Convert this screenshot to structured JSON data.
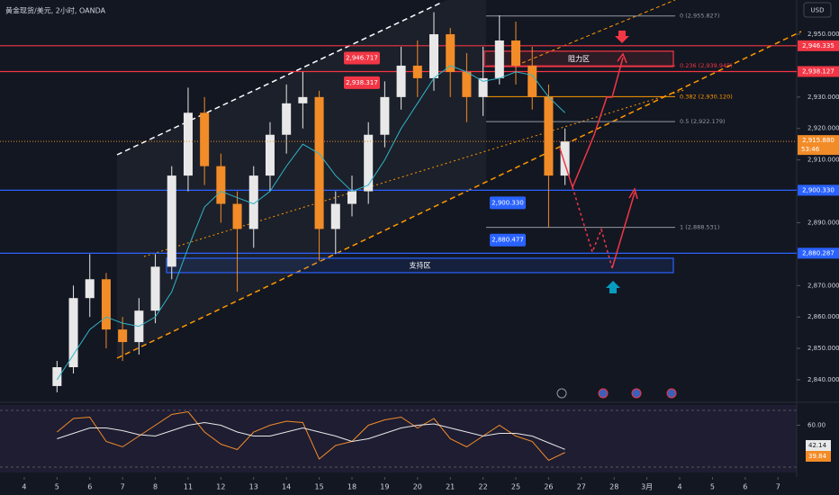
{
  "chart_data": {
    "type": "candlestick",
    "title": "黄金现货/美元, 2小时, OANDA",
    "currency": "USD",
    "x": [
      1,
      1.5,
      2,
      2.5,
      3,
      3.5,
      4,
      4.5,
      5,
      5.5,
      6,
      6.5,
      7,
      7.5,
      8,
      8.5,
      9,
      9.5,
      10,
      10.5,
      11,
      11.5,
      12,
      12.5,
      13,
      13.5,
      14,
      14.5,
      15,
      15.5,
      16,
      16.5
    ],
    "open": [
      2838,
      2844,
      2866,
      2872,
      2856,
      2852,
      2862,
      2876,
      2905,
      2925,
      2908,
      2896,
      2888,
      2905,
      2918,
      2928,
      2930,
      2888,
      2896,
      2900,
      2918,
      2930,
      2940,
      2936,
      2950,
      2938,
      2930,
      2936,
      2948,
      2940,
      2930,
      2905
    ],
    "high": [
      2846,
      2870,
      2880,
      2874,
      2860,
      2866,
      2880,
      2908,
      2933,
      2930,
      2912,
      2900,
      2908,
      2922,
      2934,
      2938,
      2932,
      2900,
      2905,
      2922,
      2935,
      2946,
      2948,
      2957,
      2952,
      2944,
      2946,
      2956,
      2954,
      2946,
      2934,
      2920
    ],
    "low": [
      2836,
      2842,
      2860,
      2850,
      2846,
      2848,
      2858,
      2872,
      2900,
      2902,
      2890,
      2868,
      2882,
      2900,
      2912,
      2920,
      2878,
      2880,
      2892,
      2896,
      2914,
      2926,
      2930,
      2932,
      2930,
      2922,
      2924,
      2934,
      2934,
      2926,
      2888.5,
      2902
    ],
    "close": [
      2844,
      2866,
      2872,
      2856,
      2852,
      2862,
      2876,
      2905,
      2925,
      2908,
      2896,
      2888,
      2905,
      2918,
      2928,
      2930,
      2888,
      2896,
      2900,
      2918,
      2930,
      2940,
      2936,
      2950,
      2938,
      2930,
      2936,
      2948,
      2940,
      2930,
      2905,
      2915.88
    ],
    "colors": {
      "up": "#e8e8e8",
      "down": "#f28c28"
    },
    "ma": {
      "color": "#2fb5c8",
      "values": [
        2840,
        2848,
        2856,
        2860,
        2858,
        2857,
        2860,
        2868,
        2882,
        2895,
        2900,
        2898,
        2896,
        2900,
        2908,
        2915,
        2912,
        2905,
        2900,
        2902,
        2910,
        2920,
        2928,
        2936,
        2940,
        2938,
        2935,
        2936,
        2938,
        2937,
        2930,
        2925
      ]
    },
    "xlim": [
      -0.74,
      23.57
    ],
    "ylim": [
      2833.4,
      2960.9
    ],
    "xticks": [
      {
        "value": 0,
        "label": "4"
      },
      {
        "value": 1,
        "label": "5"
      },
      {
        "value": 2,
        "label": "6"
      },
      {
        "value": 3,
        "label": "7"
      },
      {
        "value": 4,
        "label": "8"
      },
      {
        "value": 5,
        "label": "11"
      },
      {
        "value": 6,
        "label": "12"
      },
      {
        "value": 7,
        "label": "13"
      },
      {
        "value": 8,
        "label": "14"
      },
      {
        "value": 9,
        "label": "15"
      },
      {
        "value": 10,
        "label": "18"
      },
      {
        "value": 11,
        "label": "19"
      },
      {
        "value": 12,
        "label": "20"
      },
      {
        "value": 13,
        "label": "21"
      },
      {
        "value": 14,
        "label": "22"
      },
      {
        "value": 15,
        "label": "25"
      },
      {
        "value": 16,
        "label": "26"
      },
      {
        "value": 17,
        "label": "27"
      },
      {
        "value": 18,
        "label": "28"
      },
      {
        "value": 19,
        "label": "3月"
      },
      {
        "value": 20,
        "label": "4"
      },
      {
        "value": 21,
        "label": "5"
      },
      {
        "value": 22,
        "label": "6"
      },
      {
        "value": 23,
        "label": "7"
      }
    ],
    "yticks": [
      {
        "value": 2950,
        "label": "2,950.000"
      },
      {
        "value": 2930,
        "label": "2,930.000"
      },
      {
        "value": 2920,
        "label": "2,920.000"
      },
      {
        "value": 2910,
        "label": "2,910.000"
      },
      {
        "value": 2890,
        "label": "2,890.000"
      },
      {
        "value": 2870,
        "label": "2,870.000"
      },
      {
        "value": 2860,
        "label": "2,860.000"
      },
      {
        "value": 2850,
        "label": "2,850.000"
      },
      {
        "value": 2840,
        "label": "2,840.000"
      }
    ],
    "levels": [
      {
        "value": 2946.335,
        "label": "2,946.335",
        "color": "#f23645"
      },
      {
        "value": 2938.127,
        "label": "2,938.127",
        "color": "#f23645"
      },
      {
        "value": 2900.33,
        "label": "2,900.330",
        "color": "#2962ff"
      },
      {
        "value": 2880.287,
        "label": "2,880.287",
        "color": "#2962ff"
      }
    ],
    "tags": [
      {
        "value": 2946.717,
        "label": "2,946.717",
        "color": "#f23645"
      },
      {
        "value": 2938.317,
        "label": "2,938.317",
        "color": "#f23645"
      },
      {
        "value": 2900.33,
        "label": "2,900.330",
        "color": "#2962ff"
      },
      {
        "value": 2880.477,
        "label": "2,880.477",
        "color": "#2962ff"
      }
    ],
    "fib": [
      {
        "value": 2955.827,
        "label": "0 (2,955.827)",
        "color": "#9598a1"
      },
      {
        "value": 2939.945,
        "label": "0.236 (2,939.945)",
        "color": "#f23645"
      },
      {
        "value": 2930.12,
        "label": "0.382 (2,930.120)",
        "color": "#ff9800"
      },
      {
        "value": 2922.179,
        "label": "0.5 (2,922.179)",
        "color": "#9598a1"
      },
      {
        "value": 2888.531,
        "label": "1 (2,888.531)",
        "color": "#9598a1"
      }
    ],
    "zones": [
      {
        "label": "阻力区",
        "range": [
          2939.7,
          2944.6
        ],
        "color": "#f23645"
      },
      {
        "label": "支持区",
        "range": [
          2874.1,
          2878.7
        ],
        "color": "#2962ff"
      }
    ],
    "last": {
      "value": 2915.88,
      "label": "2,915.880",
      "timer": "53:46",
      "color": "#f28c28"
    },
    "rsi": {
      "ylim": [
        25,
        75
      ],
      "yticks": [
        {
          "value": 60,
          "label": "60.00"
        }
      ],
      "series": [
        {
          "color": "#f28c28",
          "values": [
            55,
            65,
            66,
            48,
            44,
            52,
            60,
            68,
            70,
            55,
            46,
            42,
            55,
            60,
            63,
            62,
            35,
            45,
            48,
            60,
            64,
            66,
            58,
            65,
            50,
            44,
            52,
            60,
            52,
            48,
            34,
            39.84
          ]
        },
        {
          "color": "#e8e8e8",
          "values": [
            50,
            54,
            58,
            58,
            56,
            53,
            52,
            56,
            60,
            62,
            60,
            55,
            52,
            52,
            55,
            58,
            55,
            52,
            48,
            50,
            54,
            58,
            60,
            61,
            58,
            55,
            52,
            54,
            54,
            52,
            47,
            42.14
          ]
        }
      ]
    }
  }
}
